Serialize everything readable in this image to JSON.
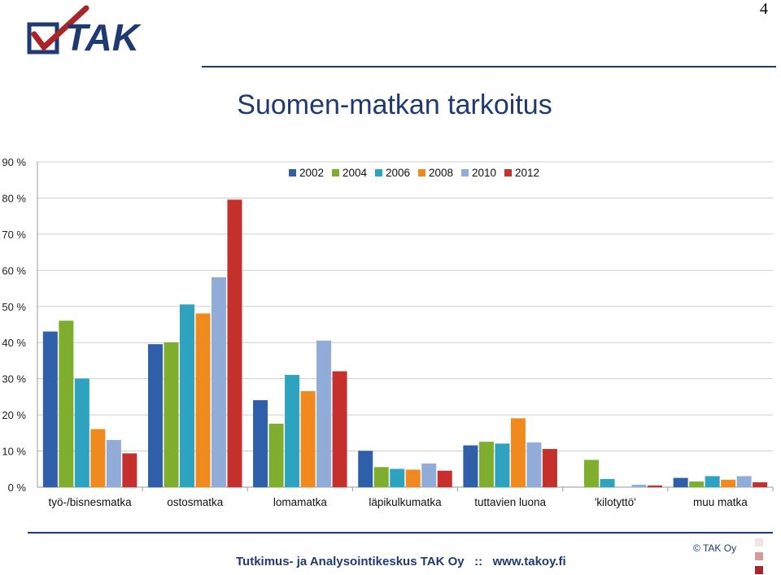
{
  "page_number": "4",
  "logo_text": "TAK",
  "title": "Suomen-matkan tarkoitus",
  "footer": {
    "text": "Tutkimus- ja Analysointikeskus TAK Oy   ::   www.takoy.fi",
    "copyright": "© TAK Oy"
  },
  "colors": {
    "title": "#1f3a73",
    "series": [
      "#2e5fa8",
      "#7fae2e",
      "#2ea3c0",
      "#f08a1e",
      "#92acd8",
      "#c6302c"
    ],
    "squares": [
      "#f3e3e3",
      "#d79a9a",
      "#a8262a"
    ]
  },
  "chart_data": {
    "type": "bar",
    "categories": [
      "työ-/bisnesmatka",
      "ostosmatka",
      "lomamatka",
      "läpikulkumatka",
      "tuttavien luona",
      "'kilotyttö'",
      "muu matka"
    ],
    "series": [
      {
        "name": "2002",
        "values": [
          43,
          39.5,
          24,
          10,
          11.5,
          null,
          2.5
        ]
      },
      {
        "name": "2004",
        "values": [
          46,
          40,
          17.5,
          5.5,
          12.5,
          7.5,
          1.5
        ]
      },
      {
        "name": "2006",
        "values": [
          30,
          50.5,
          31,
          5,
          12,
          2.2,
          3
        ]
      },
      {
        "name": "2008",
        "values": [
          16,
          48,
          26.5,
          4.8,
          19,
          null,
          2
        ]
      },
      {
        "name": "2010",
        "values": [
          13,
          58,
          40.5,
          6.5,
          12.3,
          0.6,
          3
        ]
      },
      {
        "name": "2012",
        "values": [
          9.3,
          79.5,
          32,
          4.5,
          10.5,
          0.4,
          1.3
        ]
      }
    ],
    "ylim": [
      0,
      90
    ],
    "yticks": [
      0,
      10,
      20,
      30,
      40,
      50,
      60,
      70,
      80,
      90
    ],
    "ytick_labels": [
      "0 %",
      "10 %",
      "20 %",
      "30 %",
      "40 %",
      "50 %",
      "60 %",
      "70 %",
      "80 %",
      "90 %"
    ],
    "grid": true,
    "legend_position": "top-center"
  }
}
